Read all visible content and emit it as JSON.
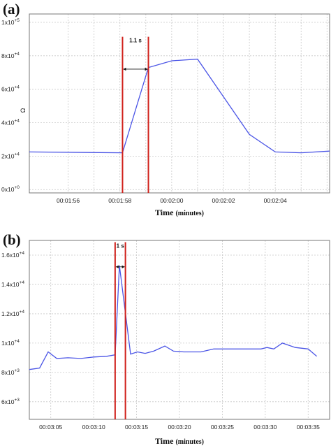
{
  "chart_data": [
    {
      "panel_label": "(a)",
      "type": "line",
      "xlabel": "Time",
      "xlabel_unit": "(minutes)",
      "ylabel": "Ω",
      "xlim": [
        114.5,
        126.1
      ],
      "ylim": [
        -2000,
        105000
      ],
      "y_ticks": [
        {
          "value": 0,
          "mant": "0x10",
          "exp": "+0"
        },
        {
          "value": 20000,
          "mant": "2x10",
          "exp": "+4"
        },
        {
          "value": 40000,
          "mant": "4x10",
          "exp": "+4"
        },
        {
          "value": 60000,
          "mant": "6x10",
          "exp": "+4"
        },
        {
          "value": 80000,
          "mant": "8x10",
          "exp": "+4"
        },
        {
          "value": 100000,
          "mant": "1x10",
          "exp": "+5"
        }
      ],
      "x_ticks": [
        {
          "value": 116,
          "label": "00:01:56"
        },
        {
          "value": 118,
          "label": "00:01:58"
        },
        {
          "value": 120,
          "label": "00:02:00"
        },
        {
          "value": 122,
          "label": "00:02:02"
        },
        {
          "value": 124,
          "label": "00:02:04"
        }
      ],
      "x_grid": [
        114.5,
        116,
        117,
        118,
        119,
        120,
        121,
        122,
        123,
        124,
        125,
        126
      ],
      "series": [
        {
          "color": "#4b55e6",
          "x": [
            114.5,
            118.1,
            119.1,
            120.0,
            121.0,
            123.0,
            124.0,
            125.0,
            126.1
          ],
          "y": [
            22500,
            22000,
            73000,
            77000,
            78000,
            33000,
            22500,
            22000,
            23000
          ]
        }
      ],
      "markers": [
        118.1,
        119.1
      ],
      "annotation": {
        "text": "1.1 s",
        "y": 72000,
        "text_y": 88000
      }
    },
    {
      "panel_label": "(b)",
      "type": "line",
      "xlabel": "Time",
      "xlabel_unit": "(minutes)",
      "ylabel": "",
      "xlim": [
        182.5,
        217.5
      ],
      "ylim": [
        4800,
        17000
      ],
      "y_ticks": [
        {
          "value": 6000,
          "mant": "6x10",
          "exp": "+3"
        },
        {
          "value": 8000,
          "mant": "8x10",
          "exp": "+3"
        },
        {
          "value": 10000,
          "mant": "1x10",
          "exp": "+4"
        },
        {
          "value": 12000,
          "mant": "1.2x10",
          "exp": "+4"
        },
        {
          "value": 14000,
          "mant": "1.4x10",
          "exp": "+4"
        },
        {
          "value": 16000,
          "mant": "1.6x10",
          "exp": "+4"
        }
      ],
      "x_ticks": [
        {
          "value": 185,
          "label": "00:03:05"
        },
        {
          "value": 190,
          "label": "00:03:10"
        },
        {
          "value": 195,
          "label": "00:03:15"
        },
        {
          "value": 200,
          "label": "00:03:20"
        },
        {
          "value": 205,
          "label": "00:03:25"
        },
        {
          "value": 210,
          "label": "00:03:30"
        },
        {
          "value": 215,
          "label": "00:03:35"
        }
      ],
      "x_grid": [
        185,
        190,
        195,
        200,
        205,
        210,
        215
      ],
      "series": [
        {
          "color": "#4b55e6",
          "x": [
            182.5,
            183.7,
            184.7,
            185.7,
            187.0,
            188.5,
            190.0,
            191.5,
            192.5,
            193.0,
            194.3,
            195.1,
            196.0,
            197.0,
            198.3,
            199.3,
            200.5,
            202.5,
            204.0,
            205.5,
            207.5,
            209.5,
            210.2,
            211.0,
            212.0,
            213.5,
            215.0,
            216.0
          ],
          "y": [
            8200,
            8300,
            9400,
            8950,
            9000,
            8950,
            9050,
            9100,
            9200,
            15300,
            9250,
            9400,
            9300,
            9450,
            9800,
            9450,
            9400,
            9400,
            9600,
            9600,
            9600,
            9600,
            9700,
            9600,
            10000,
            9700,
            9600,
            9100
          ]
        }
      ],
      "markers": [
        192.5,
        193.7
      ],
      "annotation": {
        "text": "1 s",
        "y": 15200,
        "text_y": 16500
      }
    }
  ]
}
